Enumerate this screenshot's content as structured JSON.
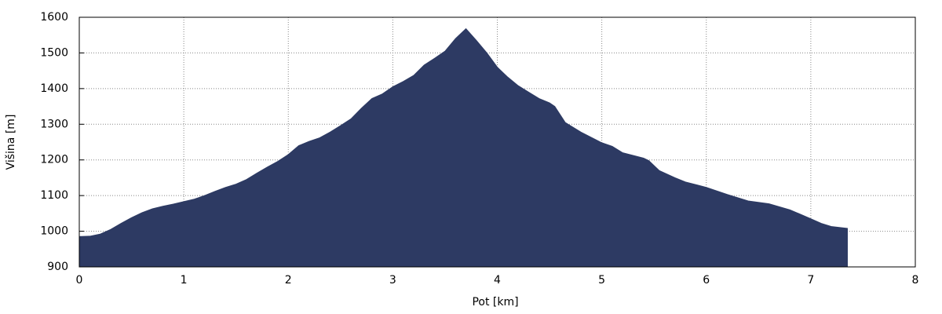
{
  "chart_data": {
    "type": "area",
    "xlabel": "Pot [km]",
    "ylabel": "Višina [m]",
    "x": [
      0,
      0.1,
      0.2,
      0.3,
      0.4,
      0.5,
      0.6,
      0.7,
      0.8,
      0.9,
      1.0,
      1.1,
      1.2,
      1.3,
      1.4,
      1.5,
      1.6,
      1.7,
      1.8,
      1.9,
      2.0,
      2.1,
      2.2,
      2.3,
      2.4,
      2.5,
      2.6,
      2.7,
      2.8,
      2.9,
      3.0,
      3.1,
      3.2,
      3.3,
      3.4,
      3.5,
      3.6,
      3.7,
      3.8,
      3.9,
      4.0,
      4.1,
      4.2,
      4.3,
      4.4,
      4.5,
      4.55,
      4.65,
      4.8,
      5.0,
      5.1,
      5.2,
      5.4,
      5.45,
      5.55,
      5.7,
      5.8,
      6.0,
      6.2,
      6.4,
      6.6,
      6.8,
      7.0,
      7.1,
      7.2,
      7.35
    ],
    "values": [
      985,
      986,
      992,
      1005,
      1022,
      1038,
      1052,
      1063,
      1070,
      1076,
      1083,
      1090,
      1100,
      1112,
      1123,
      1132,
      1145,
      1163,
      1180,
      1196,
      1215,
      1240,
      1252,
      1262,
      1278,
      1296,
      1315,
      1345,
      1372,
      1385,
      1405,
      1420,
      1437,
      1466,
      1485,
      1505,
      1540,
      1568,
      1535,
      1500,
      1460,
      1432,
      1408,
      1390,
      1372,
      1360,
      1350,
      1305,
      1278,
      1248,
      1238,
      1220,
      1205,
      1198,
      1170,
      1150,
      1138,
      1123,
      1103,
      1085,
      1077,
      1060,
      1035,
      1022,
      1013,
      1008
    ],
    "color": "#2d3a63",
    "xlim": [
      0,
      8
    ],
    "xticks": [
      0,
      1,
      2,
      3,
      4,
      5,
      6,
      7,
      8
    ],
    "ylim": [
      900,
      1600
    ],
    "yticks": [
      900,
      1000,
      1100,
      1200,
      1300,
      1400,
      1500,
      1600
    ],
    "grid": true
  }
}
